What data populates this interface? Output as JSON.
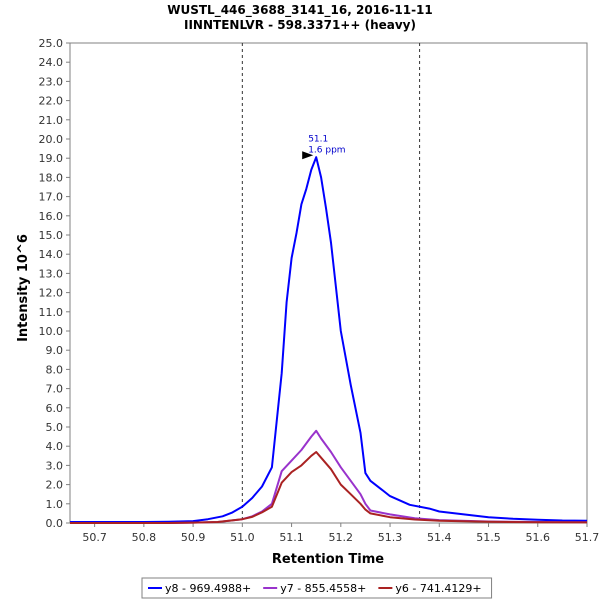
{
  "chart_data": {
    "type": "line",
    "title": "WUSTL_446_3688_3141_16, 2016-11-11",
    "subtitle": "IINNTENLVR - 598.3371++ (heavy)",
    "xlabel": "Retention Time",
    "ylabel": "Intensity 10^6",
    "xlim": [
      50.65,
      51.7
    ],
    "ylim": [
      0,
      25
    ],
    "x_ticks": [
      "50.7",
      "50.8",
      "50.9",
      "51.0",
      "51.1",
      "51.2",
      "51.3",
      "51.4",
      "51.5",
      "51.6",
      "51.7"
    ],
    "y_ticks": [
      "0.0",
      "1.0",
      "2.0",
      "3.0",
      "4.0",
      "5.0",
      "6.0",
      "7.0",
      "8.0",
      "9.0",
      "10.0",
      "11.0",
      "12.0",
      "13.0",
      "14.0",
      "15.0",
      "16.0",
      "17.0",
      "18.0",
      "19.0",
      "20.0",
      "21.0",
      "22.0",
      "23.0",
      "24.0",
      "25.0"
    ],
    "vlines": [
      51.0,
      51.36
    ],
    "grid": false,
    "legend_position": "bottom",
    "annotation": {
      "x": 51.15,
      "y": 19.1,
      "lines": [
        "51.1",
        "1.6 ppm"
      ],
      "color": "#0000cc"
    },
    "series": [
      {
        "name": "y8 - 969.4988+",
        "color": "#0000ff",
        "x": [
          50.65,
          50.7,
          50.8,
          50.85,
          50.9,
          50.93,
          50.96,
          50.98,
          51.0,
          51.02,
          51.04,
          51.06,
          51.08,
          51.09,
          51.1,
          51.11,
          51.12,
          51.13,
          51.14,
          51.15,
          51.16,
          51.17,
          51.18,
          51.19,
          51.2,
          51.22,
          51.24,
          51.25,
          51.26,
          51.28,
          51.3,
          51.34,
          51.38,
          51.4,
          51.45,
          51.5,
          51.55,
          51.6,
          51.65,
          51.7
        ],
        "y": [
          0.05,
          0.05,
          0.05,
          0.07,
          0.1,
          0.2,
          0.35,
          0.55,
          0.85,
          1.3,
          1.9,
          2.9,
          7.8,
          11.5,
          13.8,
          15.1,
          16.6,
          17.4,
          18.4,
          19.05,
          18.0,
          16.4,
          14.6,
          12.3,
          10.0,
          7.2,
          4.7,
          2.6,
          2.2,
          1.8,
          1.4,
          0.95,
          0.75,
          0.6,
          0.45,
          0.3,
          0.22,
          0.17,
          0.13,
          0.12
        ]
      },
      {
        "name": "y7 - 855.4558+",
        "color": "#9933cc",
        "x": [
          50.65,
          50.85,
          50.9,
          50.95,
          51.0,
          51.02,
          51.04,
          51.06,
          51.08,
          51.1,
          51.12,
          51.14,
          51.15,
          51.16,
          51.18,
          51.2,
          51.22,
          51.24,
          51.25,
          51.26,
          51.3,
          51.35,
          51.4,
          51.5,
          51.6,
          51.7
        ],
        "y": [
          0.0,
          0.0,
          0.02,
          0.05,
          0.2,
          0.35,
          0.6,
          1.0,
          2.7,
          3.25,
          3.8,
          4.5,
          4.8,
          4.4,
          3.7,
          2.9,
          2.2,
          1.5,
          1.0,
          0.65,
          0.45,
          0.25,
          0.15,
          0.08,
          0.05,
          0.04
        ]
      },
      {
        "name": "y6 - 741.4129+",
        "color": "#aa2222",
        "x": [
          50.65,
          50.85,
          50.9,
          50.95,
          51.0,
          51.02,
          51.04,
          51.06,
          51.08,
          51.1,
          51.12,
          51.14,
          51.15,
          51.16,
          51.18,
          51.2,
          51.22,
          51.24,
          51.25,
          51.26,
          51.3,
          51.35,
          51.4,
          51.5,
          51.6,
          51.7
        ],
        "y": [
          0.0,
          0.0,
          0.02,
          0.05,
          0.2,
          0.32,
          0.55,
          0.85,
          2.1,
          2.65,
          3.0,
          3.5,
          3.7,
          3.4,
          2.8,
          2.0,
          1.5,
          1.0,
          0.7,
          0.5,
          0.3,
          0.18,
          0.12,
          0.06,
          0.04,
          0.03
        ]
      }
    ]
  }
}
